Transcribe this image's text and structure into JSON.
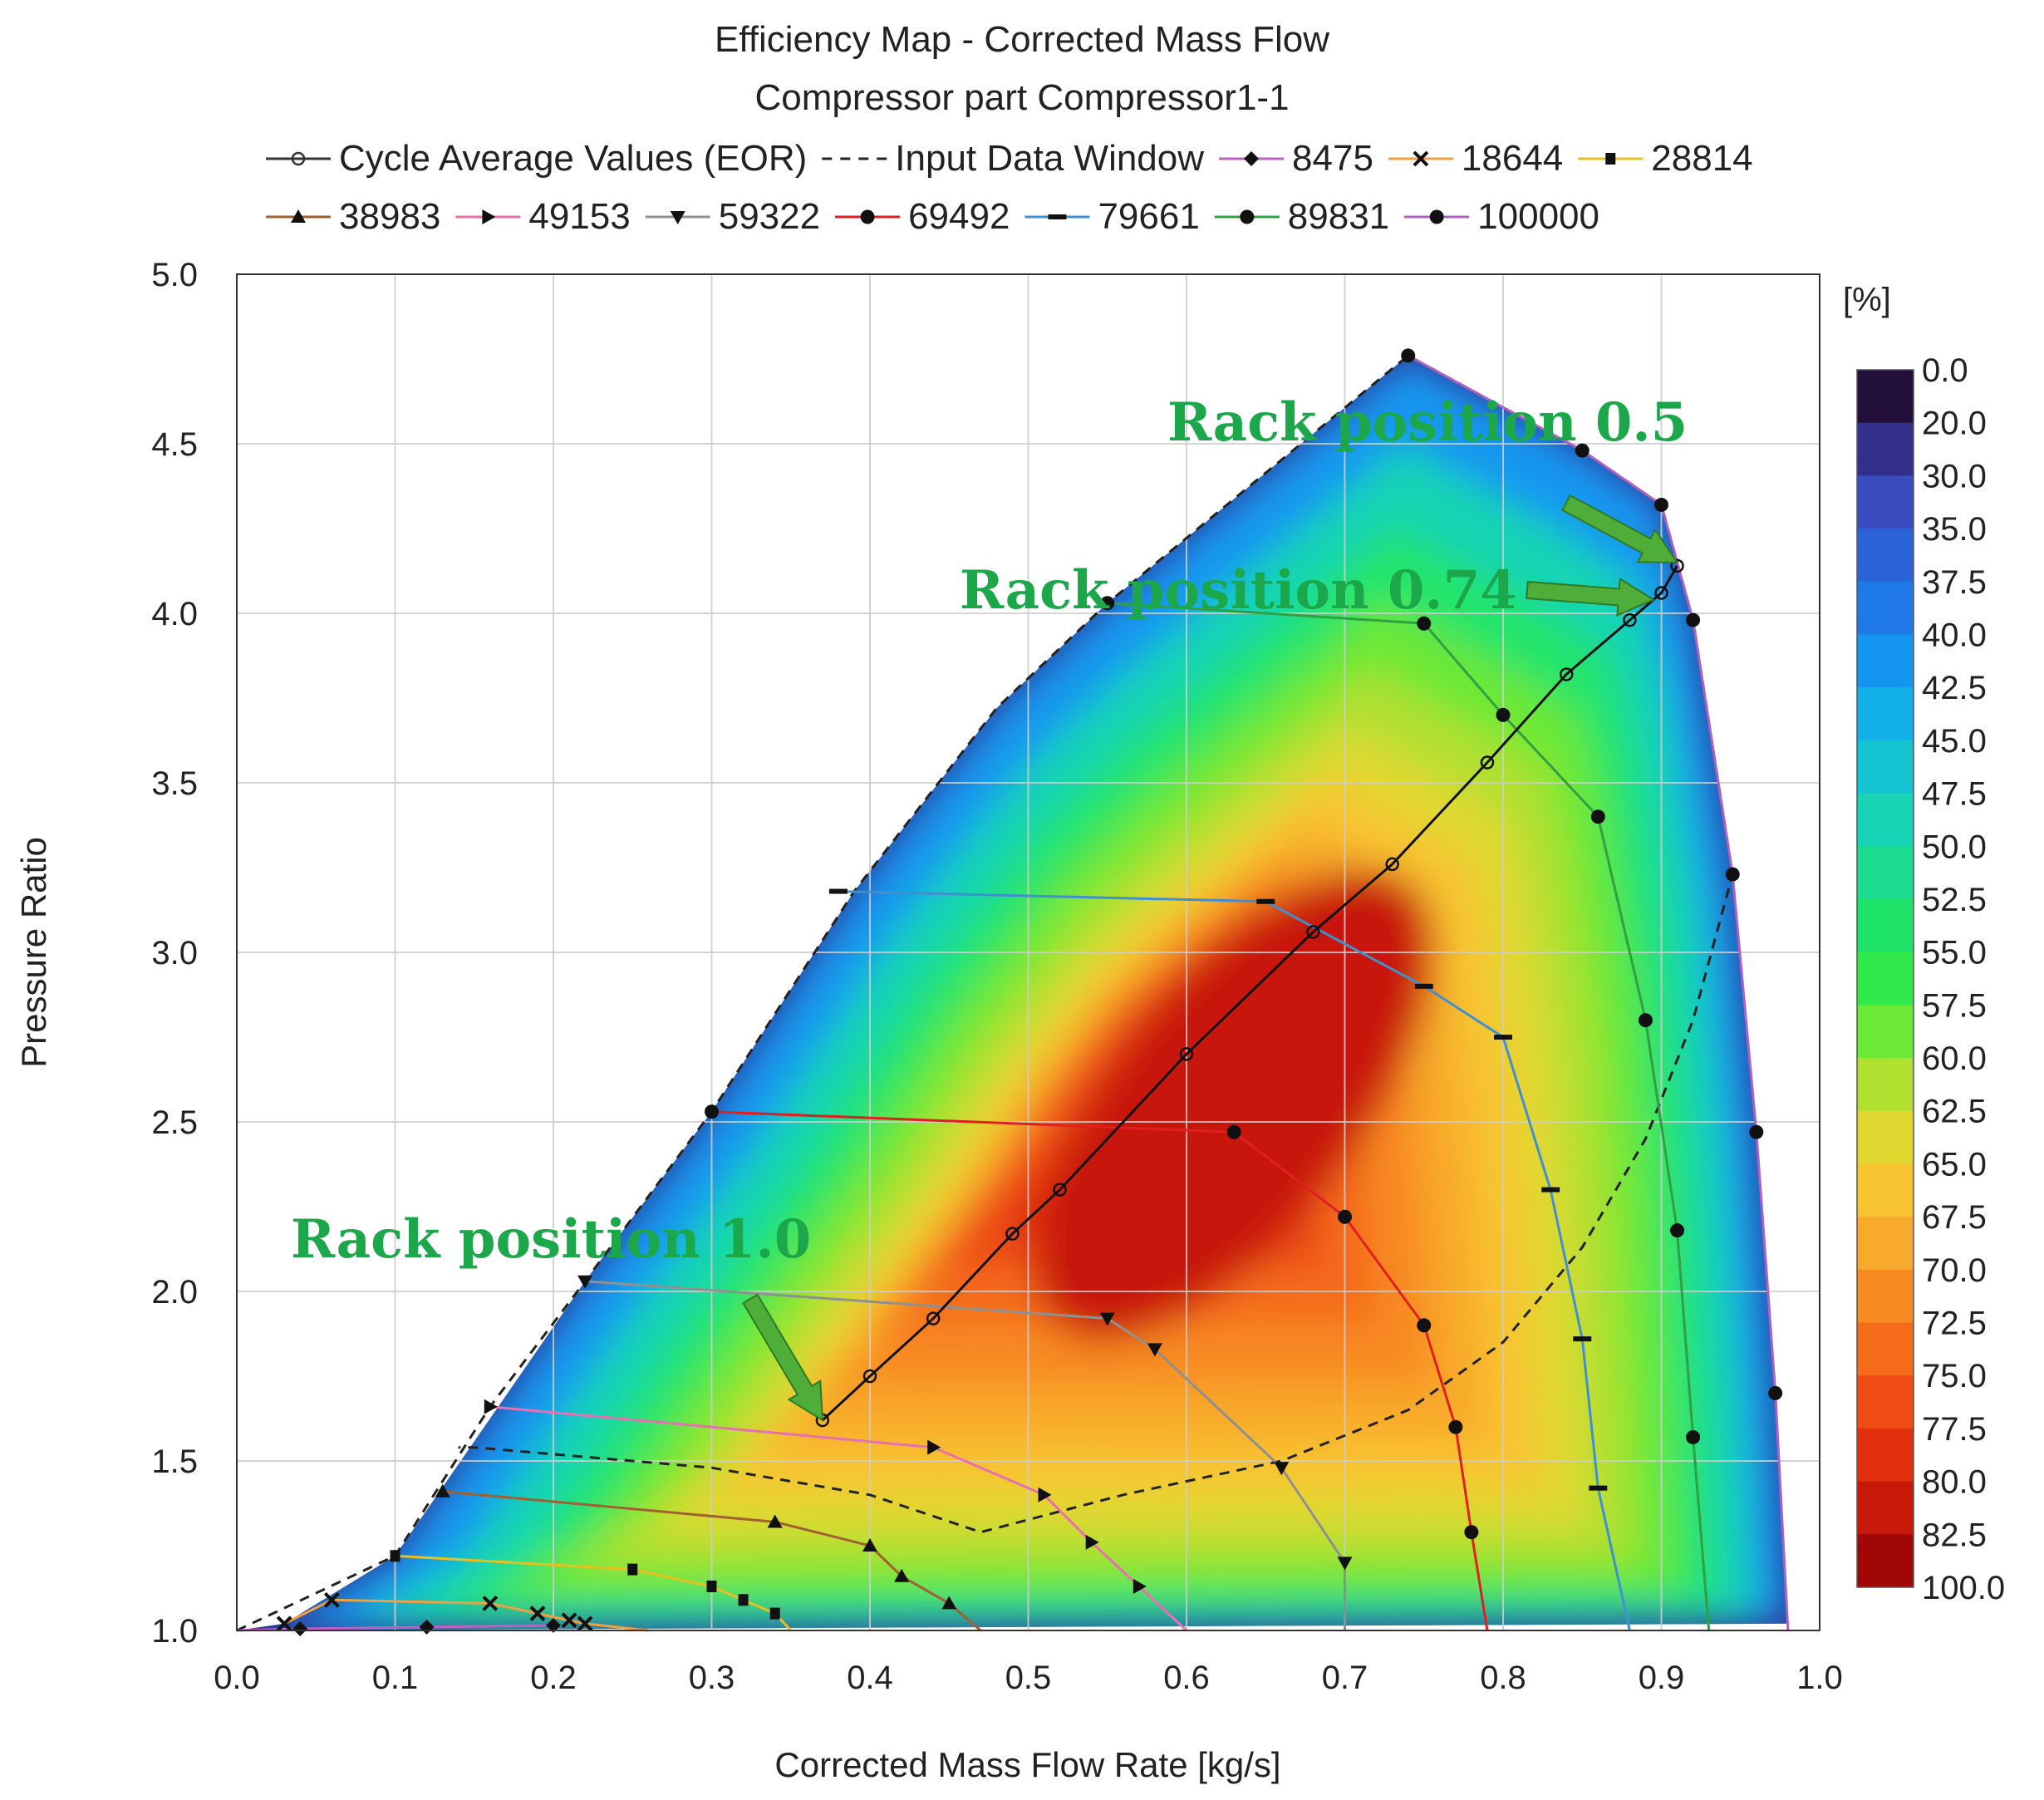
{
  "chart_data": {
    "type": "contour",
    "title": "Efficiency Map - Corrected Mass Flow",
    "subtitle": "Compressor part Compressor1-1",
    "xlabel": "Corrected Mass Flow Rate [kg/s]",
    "ylabel": "Pressure Ratio",
    "xlim": [
      0.0,
      1.0
    ],
    "ylim": [
      1.0,
      5.0
    ],
    "x_ticks": [
      "0.0",
      "0.1",
      "0.2",
      "0.3",
      "0.4",
      "0.5",
      "0.6",
      "0.7",
      "0.8",
      "0.9",
      "1.0"
    ],
    "y_ticks": [
      "1.0",
      "1.5",
      "2.0",
      "2.5",
      "3.0",
      "3.5",
      "4.0",
      "4.5",
      "5.0"
    ],
    "grid": true,
    "colorbar": {
      "unit": "[%]",
      "labels": [
        "0.0",
        "20.0",
        "30.0",
        "35.0",
        "37.5",
        "40.0",
        "42.5",
        "45.0",
        "47.5",
        "50.0",
        "52.5",
        "55.0",
        "57.5",
        "60.0",
        "62.5",
        "65.0",
        "67.5",
        "70.0",
        "72.5",
        "75.0",
        "77.5",
        "80.0",
        "82.5",
        "100.0"
      ],
      "colors": [
        "#22103a",
        "#33308c",
        "#3a4cc0",
        "#2c62d8",
        "#1f7ae8",
        "#1496f0",
        "#12b0e8",
        "#14c4d0",
        "#18d4b4",
        "#1cdc90",
        "#20e46a",
        "#30e84a",
        "#6ce836",
        "#b0e030",
        "#e0d830",
        "#f8c432",
        "#f8aa2c",
        "#f88a22",
        "#f46c1a",
        "#ee4c14",
        "#e2300e",
        "#c8180a",
        "#a00808"
      ]
    },
    "legend": [
      {
        "name": "Cycle Average Values (EOR)",
        "color": "#333333",
        "marker": "open-circle",
        "style": "solid"
      },
      {
        "name": "Input Data Window",
        "color": "#222222",
        "marker": "none",
        "style": "dashed"
      },
      {
        "name": "8475",
        "color": "#c060c0",
        "marker": "diamond",
        "style": "solid"
      },
      {
        "name": "18644",
        "color": "#f0a040",
        "marker": "x",
        "style": "solid"
      },
      {
        "name": "28814",
        "color": "#e8c020",
        "marker": "square",
        "style": "solid"
      },
      {
        "name": "38983",
        "color": "#a06030",
        "marker": "triangle-up",
        "style": "solid"
      },
      {
        "name": "49153",
        "color": "#e870b0",
        "marker": "triangle-right",
        "style": "solid"
      },
      {
        "name": "59322",
        "color": "#909090",
        "marker": "triangle-down",
        "style": "solid"
      },
      {
        "name": "69492",
        "color": "#e02020",
        "marker": "dot",
        "style": "solid"
      },
      {
        "name": "79661",
        "color": "#4090d0",
        "marker": "dash",
        "style": "solid"
      },
      {
        "name": "89831",
        "color": "#30a040",
        "marker": "dot",
        "style": "solid"
      },
      {
        "name": "100000",
        "color": "#b060c0",
        "marker": "dot",
        "style": "solid"
      }
    ],
    "map_boundary": [
      [
        0.0,
        1.0
      ],
      [
        0.03,
        1.02
      ],
      [
        0.1,
        1.22
      ],
      [
        0.22,
        2.03
      ],
      [
        0.3,
        2.53
      ],
      [
        0.39,
        3.18
      ],
      [
        0.48,
        3.72
      ],
      [
        0.55,
        4.03
      ],
      [
        0.74,
        4.76
      ],
      [
        0.85,
        4.48
      ],
      [
        0.9,
        4.32
      ],
      [
        0.92,
        3.98
      ],
      [
        0.945,
        3.23
      ],
      [
        0.96,
        2.47
      ],
      [
        0.972,
        1.7
      ],
      [
        0.98,
        1.02
      ]
    ],
    "input_data_window": [
      [
        0.0,
        1.0
      ],
      [
        0.1,
        1.22
      ],
      [
        0.16,
        1.66
      ],
      [
        0.22,
        2.03
      ],
      [
        0.3,
        2.53
      ],
      [
        0.39,
        3.18
      ],
      [
        0.48,
        3.72
      ],
      [
        0.55,
        4.03
      ],
      [
        0.74,
        4.76
      ],
      [
        0.85,
        4.48
      ],
      [
        0.9,
        4.32
      ],
      [
        0.92,
        3.98
      ],
      [
        0.945,
        3.23
      ],
      [
        0.92,
        2.8
      ],
      [
        0.89,
        2.45
      ],
      [
        0.85,
        2.13
      ],
      [
        0.8,
        1.85
      ],
      [
        0.74,
        1.65
      ],
      [
        0.66,
        1.5
      ],
      [
        0.56,
        1.4
      ],
      [
        0.47,
        1.29
      ],
      [
        0.4,
        1.4
      ],
      [
        0.3,
        1.48
      ],
      [
        0.15,
        1.54
      ],
      [
        0.14,
        1.54
      ]
    ],
    "speed_lines": [
      {
        "name": "8475",
        "points": [
          [
            0.0,
            1.0
          ],
          [
            0.04,
            1.005
          ],
          [
            0.12,
            1.01
          ],
          [
            0.2,
            1.015
          ]
        ]
      },
      {
        "name": "18644",
        "points": [
          [
            0.03,
            1.02
          ],
          [
            0.06,
            1.09
          ],
          [
            0.16,
            1.08
          ],
          [
            0.19,
            1.05
          ],
          [
            0.21,
            1.03
          ],
          [
            0.22,
            1.02
          ],
          [
            0.26,
            1.0
          ]
        ]
      },
      {
        "name": "28814",
        "points": [
          [
            0.1,
            1.22
          ],
          [
            0.25,
            1.18
          ],
          [
            0.3,
            1.13
          ],
          [
            0.32,
            1.09
          ],
          [
            0.34,
            1.05
          ],
          [
            0.35,
            1.0
          ]
        ]
      },
      {
        "name": "38983",
        "points": [
          [
            0.13,
            1.41
          ],
          [
            0.34,
            1.32
          ],
          [
            0.4,
            1.25
          ],
          [
            0.42,
            1.16
          ],
          [
            0.45,
            1.08
          ],
          [
            0.47,
            1.0
          ]
        ]
      },
      {
        "name": "49153",
        "points": [
          [
            0.16,
            1.66
          ],
          [
            0.44,
            1.54
          ],
          [
            0.51,
            1.4
          ],
          [
            0.54,
            1.26
          ],
          [
            0.57,
            1.13
          ],
          [
            0.6,
            1.0
          ]
        ]
      },
      {
        "name": "59322",
        "points": [
          [
            0.22,
            2.03
          ],
          [
            0.55,
            1.92
          ],
          [
            0.58,
            1.83
          ],
          [
            0.66,
            1.48
          ],
          [
            0.7,
            1.2
          ],
          [
            0.7,
            1.0
          ]
        ]
      },
      {
        "name": "69492",
        "points": [
          [
            0.3,
            2.53
          ],
          [
            0.63,
            2.47
          ],
          [
            0.7,
            2.22
          ],
          [
            0.75,
            1.9
          ],
          [
            0.77,
            1.6
          ],
          [
            0.78,
            1.29
          ],
          [
            0.79,
            1.0
          ]
        ]
      },
      {
        "name": "79661",
        "points": [
          [
            0.38,
            3.18
          ],
          [
            0.65,
            3.15
          ],
          [
            0.75,
            2.9
          ],
          [
            0.8,
            2.75
          ],
          [
            0.83,
            2.3
          ],
          [
            0.85,
            1.86
          ],
          [
            0.86,
            1.42
          ],
          [
            0.88,
            1.0
          ]
        ]
      },
      {
        "name": "89831",
        "points": [
          [
            0.55,
            4.03
          ],
          [
            0.75,
            3.97
          ],
          [
            0.8,
            3.7
          ],
          [
            0.86,
            3.4
          ],
          [
            0.89,
            2.8
          ],
          [
            0.91,
            2.18
          ],
          [
            0.92,
            1.57
          ],
          [
            0.93,
            1.0
          ]
        ]
      },
      {
        "name": "100000",
        "points": [
          [
            0.74,
            4.76
          ],
          [
            0.85,
            4.48
          ],
          [
            0.9,
            4.32
          ],
          [
            0.92,
            3.98
          ],
          [
            0.945,
            3.23
          ],
          [
            0.96,
            2.47
          ],
          [
            0.972,
            1.7
          ],
          [
            0.98,
            1.0
          ]
        ]
      }
    ],
    "cycle_average_line": [
      [
        0.37,
        1.62
      ],
      [
        0.4,
        1.75
      ],
      [
        0.44,
        1.92
      ],
      [
        0.49,
        2.17
      ],
      [
        0.52,
        2.3
      ],
      [
        0.6,
        2.7
      ],
      [
        0.68,
        3.06
      ],
      [
        0.73,
        3.26
      ],
      [
        0.79,
        3.56
      ],
      [
        0.84,
        3.82
      ],
      [
        0.88,
        3.98
      ],
      [
        0.9,
        4.06
      ],
      [
        0.91,
        4.14
      ]
    ],
    "annotations": [
      {
        "text": "Rack position 0.5",
        "x": 0.91,
        "y": 4.15
      },
      {
        "text": "Rack position 0.74",
        "x": 0.895,
        "y": 4.04
      },
      {
        "text": "Rack position 1.0",
        "x": 0.37,
        "y": 1.62
      }
    ]
  }
}
